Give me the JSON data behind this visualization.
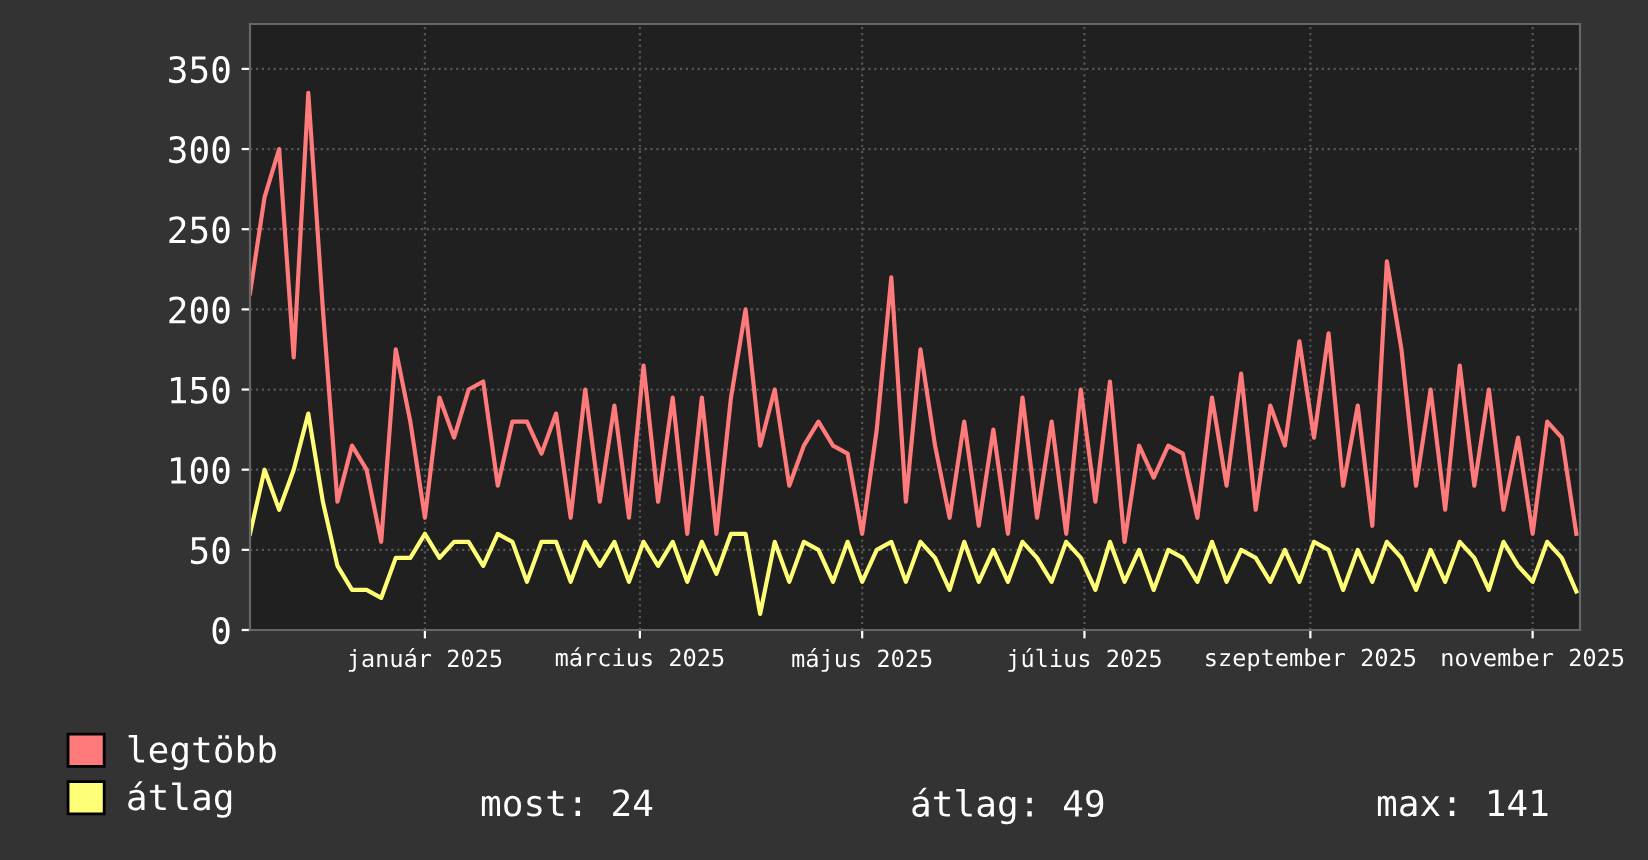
{
  "chart_data": {
    "type": "line",
    "x": [
      "2024-11-14",
      "2024-11-18",
      "2024-11-22",
      "2024-11-26",
      "2024-11-30",
      "2024-12-04",
      "2024-12-08",
      "2024-12-12",
      "2024-12-16",
      "2024-12-20",
      "2024-12-24",
      "2024-12-28",
      "2025-01-01",
      "2025-01-05",
      "2025-01-09",
      "2025-01-13",
      "2025-01-17",
      "2025-01-21",
      "2025-01-25",
      "2025-01-29",
      "2025-02-02",
      "2025-02-06",
      "2025-02-10",
      "2025-02-14",
      "2025-02-18",
      "2025-02-22",
      "2025-02-26",
      "2025-03-02",
      "2025-03-06",
      "2025-03-10",
      "2025-03-14",
      "2025-03-18",
      "2025-03-22",
      "2025-03-26",
      "2025-03-30",
      "2025-04-03",
      "2025-04-07",
      "2025-04-11",
      "2025-04-15",
      "2025-04-19",
      "2025-04-23",
      "2025-04-27",
      "2025-05-01",
      "2025-05-05",
      "2025-05-09",
      "2025-05-13",
      "2025-05-17",
      "2025-05-21",
      "2025-05-25",
      "2025-05-29",
      "2025-06-02",
      "2025-06-06",
      "2025-06-10",
      "2025-06-14",
      "2025-06-18",
      "2025-06-22",
      "2025-06-26",
      "2025-06-30",
      "2025-07-04",
      "2025-07-08",
      "2025-07-12",
      "2025-07-16",
      "2025-07-20",
      "2025-07-24",
      "2025-07-28",
      "2025-08-01",
      "2025-08-05",
      "2025-08-09",
      "2025-08-13",
      "2025-08-17",
      "2025-08-21",
      "2025-08-25",
      "2025-08-29",
      "2025-09-02",
      "2025-09-06",
      "2025-09-10",
      "2025-09-14",
      "2025-09-18",
      "2025-09-22",
      "2025-09-26",
      "2025-09-30",
      "2025-10-04",
      "2025-10-08",
      "2025-10-12",
      "2025-10-16",
      "2025-10-20",
      "2025-10-24",
      "2025-10-28",
      "2025-11-01",
      "2025-11-05",
      "2025-11-09",
      "2025-11-13"
    ],
    "series": [
      {
        "name": "legtöbb",
        "color": "#ff7b7b",
        "values": [
          210,
          270,
          300,
          170,
          335,
          200,
          80,
          115,
          100,
          55,
          175,
          130,
          70,
          145,
          120,
          150,
          155,
          90,
          130,
          130,
          110,
          135,
          70,
          150,
          80,
          140,
          70,
          165,
          80,
          145,
          60,
          145,
          60,
          145,
          200,
          115,
          150,
          90,
          115,
          130,
          115,
          110,
          60,
          125,
          220,
          80,
          175,
          115,
          70,
          130,
          65,
          125,
          60,
          145,
          70,
          130,
          60,
          150,
          80,
          155,
          55,
          115,
          95,
          115,
          110,
          70,
          145,
          90,
          160,
          75,
          140,
          115,
          180,
          120,
          185,
          90,
          140,
          65,
          230,
          175,
          90,
          150,
          75,
          165,
          90,
          150,
          75,
          120,
          60,
          130,
          120,
          60
        ]
      },
      {
        "name": "átlag",
        "color": "#ffff77",
        "values": [
          60,
          100,
          75,
          100,
          135,
          80,
          40,
          25,
          25,
          20,
          45,
          45,
          60,
          45,
          55,
          55,
          40,
          60,
          55,
          30,
          55,
          55,
          30,
          55,
          40,
          55,
          30,
          55,
          40,
          55,
          30,
          55,
          35,
          60,
          60,
          10,
          55,
          30,
          55,
          50,
          30,
          55,
          30,
          50,
          55,
          30,
          55,
          45,
          25,
          55,
          30,
          50,
          30,
          55,
          45,
          30,
          55,
          45,
          25,
          55,
          30,
          50,
          25,
          50,
          45,
          30,
          55,
          30,
          50,
          45,
          30,
          50,
          30,
          55,
          50,
          25,
          50,
          30,
          55,
          45,
          25,
          50,
          30,
          55,
          45,
          25,
          55,
          40,
          30,
          55,
          45,
          24
        ]
      }
    ],
    "xlim": [
      "2024-11-14",
      "2025-11-14"
    ],
    "xticks": [
      {
        "value": "2025-01-01",
        "label": "január 2025"
      },
      {
        "value": "2025-03-01",
        "label": "március 2025"
      },
      {
        "value": "2025-05-01",
        "label": "május 2025"
      },
      {
        "value": "2025-07-01",
        "label": "július 2025"
      },
      {
        "value": "2025-09-01",
        "label": "szeptember 2025"
      },
      {
        "value": "2025-11-01",
        "label": "november 2025"
      }
    ],
    "ylim": [
      0,
      378
    ],
    "yticks": [
      0,
      50,
      100,
      150,
      200,
      250,
      300,
      350
    ],
    "grid": true,
    "legend": "bottom left",
    "marker": "none",
    "line_style": "solid",
    "annotations": [
      "most: 24",
      "átlag: 49",
      "max: 141"
    ]
  }
}
